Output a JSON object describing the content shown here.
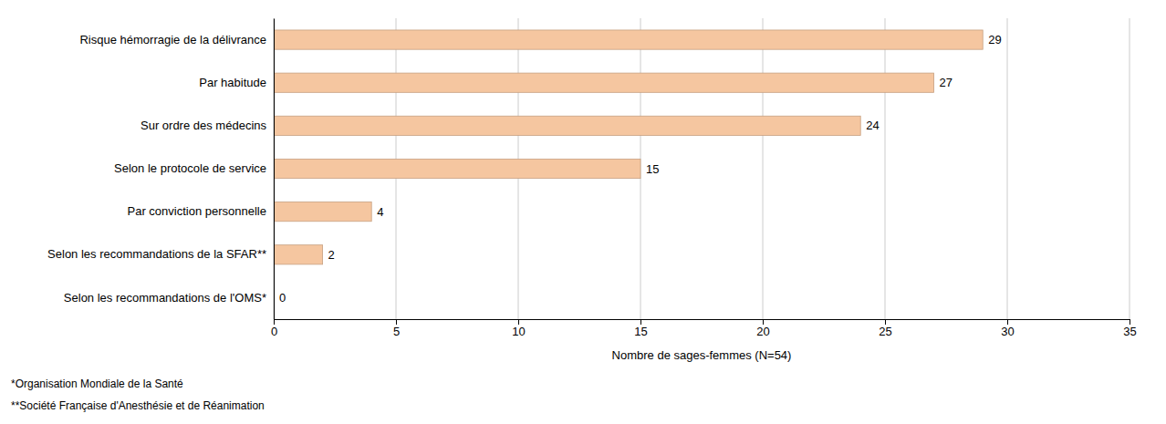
{
  "chart_data": {
    "type": "bar",
    "orientation": "horizontal",
    "categories": [
      "Selon les recommandations de l'OMS*",
      "Selon les recommandations de la SFAR**",
      "Par conviction personnelle",
      "Selon le protocole de service",
      "Sur ordre des médecins",
      "Par habitude",
      "Risque hémorragie de la délivrance"
    ],
    "values": [
      0,
      2,
      4,
      15,
      24,
      27,
      29
    ],
    "color": "#F5C6A0",
    "xlim": [
      0,
      35
    ],
    "xticks": [
      0,
      5,
      10,
      15,
      20,
      25,
      30,
      35
    ],
    "x_label": "Nombre de sages-femmes (N=54)",
    "annotations": [
      "*Organisation Mondiale de la Santé",
      "**Société Française d'Anesthésie et de Réanimation"
    ],
    "grid": true,
    "data_labels": true
  }
}
